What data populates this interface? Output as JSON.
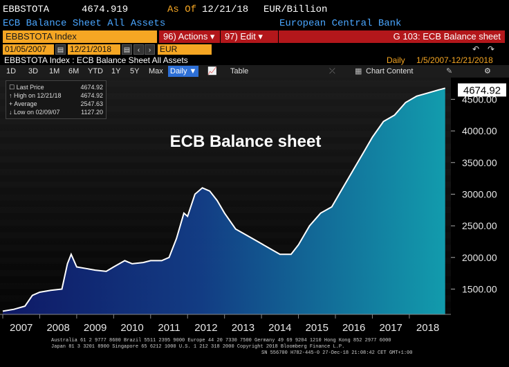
{
  "header": {
    "ticker": "EBBSTOTA",
    "last_value": "4674.919",
    "as_of_label": "As Of",
    "as_of_date": "12/21/18",
    "unit": "EUR/Billion",
    "description": "ECB Balance Sheet All Assets",
    "source": "European Central Bank"
  },
  "command_bar": {
    "index_label": "EBBSTOTA Index",
    "actions_label": "96) Actions ▾",
    "edit_label": "97) Edit ▾",
    "page_label": "G 103: ECB Balance sheet"
  },
  "date_controls": {
    "start_date": "01/05/2007",
    "end_date": "12/21/2018",
    "currency": "EUR",
    "frequency_note": "Daily",
    "range_note": "1/5/2007-12/21/2018"
  },
  "toolbar": {
    "buttons": [
      "1D",
      "3D",
      "1M",
      "6M",
      "YTD",
      "1Y",
      "5Y",
      "Max"
    ],
    "frequency": "Daily ▼",
    "table_label": "Table",
    "chart_content_label": "Chart Content"
  },
  "subtitle": "EBBSTOTA Index : ECB Balance Sheet All Assets",
  "legend": {
    "items": [
      {
        "label": "Last Price",
        "value": "4674.92"
      },
      {
        "label": "High on 12/21/18",
        "value": "4674.92"
      },
      {
        "label": "Average",
        "value": "2547.63"
      },
      {
        "label": "Low on 02/09/07",
        "value": "1127.20"
      }
    ]
  },
  "chart_data": {
    "type": "area",
    "title": "ECB Balance sheet",
    "last_label": "4674.92",
    "ylim": [
      1100,
      4800
    ],
    "y_ticks": [
      1500,
      2000,
      2500,
      3000,
      3500,
      4000,
      4500
    ],
    "y_tick_labels": [
      "1500.00",
      "2000.00",
      "2500.00",
      "3000.00",
      "3500.00",
      "4000.00",
      "4500.00"
    ],
    "x_tick_labels": [
      "2007",
      "2008",
      "2009",
      "2010",
      "2011",
      "2012",
      "2013",
      "2014",
      "2015",
      "2016",
      "2017",
      "2018"
    ],
    "x": [
      2007.0,
      2007.3,
      2007.6,
      2007.8,
      2008.0,
      2008.3,
      2008.6,
      2008.75,
      2008.85,
      2009.0,
      2009.3,
      2009.5,
      2009.8,
      2010.0,
      2010.3,
      2010.5,
      2010.8,
      2011.0,
      2011.3,
      2011.5,
      2011.7,
      2011.9,
      2012.0,
      2012.2,
      2012.4,
      2012.6,
      2012.8,
      2013.0,
      2013.3,
      2013.6,
      2013.9,
      2014.2,
      2014.5,
      2014.8,
      2015.0,
      2015.3,
      2015.6,
      2015.9,
      2016.2,
      2016.5,
      2016.8,
      2017.0,
      2017.3,
      2017.6,
      2017.9,
      2018.2,
      2018.5,
      2018.8,
      2018.97
    ],
    "values": [
      1150,
      1180,
      1230,
      1400,
      1450,
      1480,
      1500,
      1900,
      2050,
      1850,
      1820,
      1800,
      1780,
      1850,
      1950,
      1900,
      1920,
      1950,
      1950,
      2000,
      2300,
      2700,
      2650,
      3000,
      3100,
      3050,
      2900,
      2700,
      2450,
      2350,
      2250,
      2150,
      2050,
      2050,
      2200,
      2500,
      2700,
      2800,
      3100,
      3400,
      3700,
      3900,
      4150,
      4250,
      4450,
      4550,
      4600,
      4650,
      4674.92
    ]
  },
  "footer": {
    "line1": "Australia 61 2 9777 8600 Brazil 5511 2395 9000 Europe 44 20 7330 7500 Germany 49 69 9204 1210 Hong Kong 852 2977 6000",
    "line2": "Japan 81 3 3201 8900         Singapore 65 6212 1000       U.S. 1 212 318 2000           Copyright 2018 Bloomberg Finance L.P.",
    "line3": "SN 556700 H782-445-0 27-Dec-18 21:08:42 CET  GMT+1:00"
  }
}
